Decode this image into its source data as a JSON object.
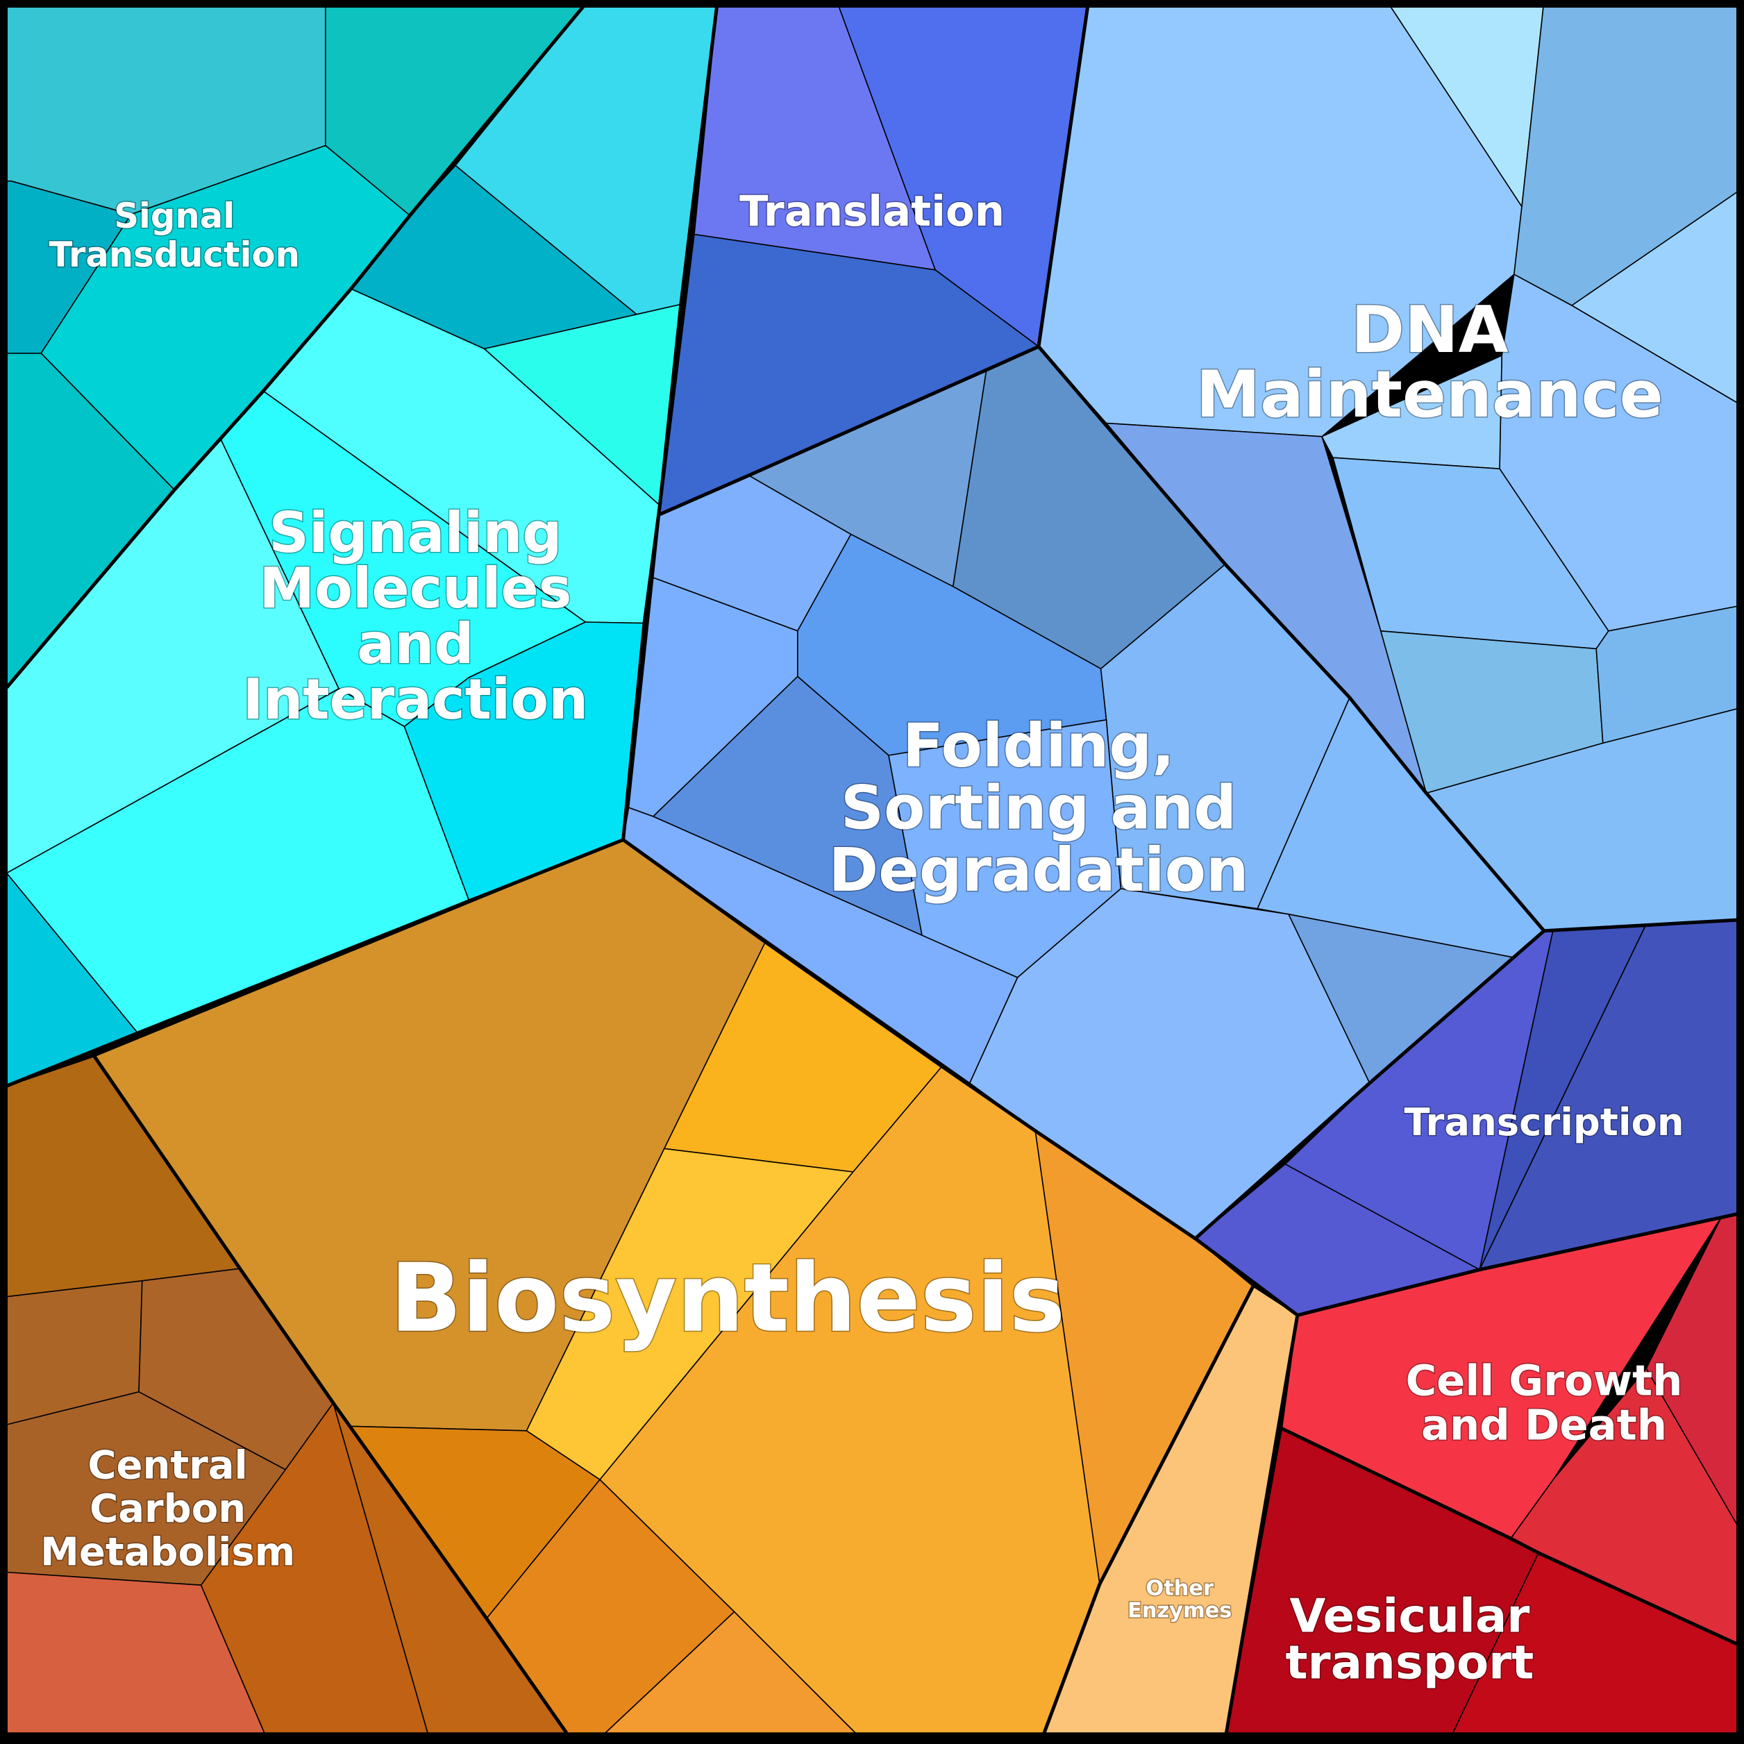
{
  "diagram": {
    "type": "voronoi-treemap",
    "groups": [
      {
        "key": "signal_transduction",
        "lines": [
          "Signal",
          "Transduction"
        ],
        "color": "#00CED1"
      },
      {
        "key": "signaling_molecules",
        "lines": [
          "Signaling",
          "Molecules",
          "and",
          "Interaction"
        ],
        "color": "#33FFFF"
      },
      {
        "key": "translation",
        "lines": [
          "Translation"
        ],
        "color": "#4F6FEF"
      },
      {
        "key": "dna_maintenance",
        "lines": [
          "DNA",
          "Maintenance"
        ],
        "color": "#92C8FF"
      },
      {
        "key": "folding",
        "lines": [
          "Folding,",
          "Sorting and",
          "Degradation"
        ],
        "color": "#80B2FF"
      },
      {
        "key": "transcription",
        "lines": [
          "Transcription"
        ],
        "color": "#5050D0"
      },
      {
        "key": "biosynthesis",
        "lines": [
          "Biosynthesis"
        ],
        "color": "#F8A830"
      },
      {
        "key": "central_carbon",
        "lines": [
          "Central",
          "Carbon",
          "Metabolism"
        ],
        "color": "#B06A1E"
      },
      {
        "key": "other_enzymes",
        "lines": [
          "Other",
          "Enzymes"
        ],
        "color": "#FCC478"
      },
      {
        "key": "cell_growth",
        "lines": [
          "Cell Growth",
          "and Death"
        ],
        "color": "#F53545"
      },
      {
        "key": "vesicular",
        "lines": [
          "Vesicular",
          "transport"
        ],
        "color": "#C00A1A"
      }
    ]
  }
}
